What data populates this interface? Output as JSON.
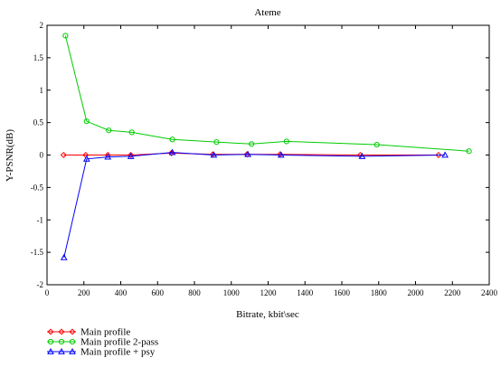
{
  "chart_data": {
    "type": "line",
    "title": "Ateme",
    "xlabel": "Bitrate, kbit\\sec",
    "ylabel": "Y-PSNR(dB)",
    "xlim": [
      0,
      2400
    ],
    "ylim": [
      -2,
      2
    ],
    "xticks": [
      0,
      200,
      400,
      600,
      800,
      1000,
      1200,
      1400,
      1600,
      1800,
      2000,
      2200,
      2400
    ],
    "yticks": [
      -2,
      -1.5,
      -1,
      -0.5,
      0,
      0.5,
      1,
      1.5,
      2
    ],
    "xtick_labels": [
      "0",
      "200",
      "400",
      "600",
      "800",
      "1000",
      "1200",
      "1400",
      "1600",
      "1800",
      "2000",
      "2200",
      "2400"
    ],
    "ytick_labels": [
      "-2",
      "-1.5",
      "-1",
      "-0.5",
      "0",
      "0.5",
      "1",
      "1.5",
      "2"
    ],
    "grid": false,
    "legend_position": "below-left",
    "series": [
      {
        "name": "Main profile",
        "color": "#ff0000",
        "marker": "diamond",
        "x": [
          90,
          210,
          330,
          455,
          675,
          900,
          1085,
          1265,
          1700,
          2125
        ],
        "y": [
          0,
          0,
          0,
          0,
          0.03,
          0.01,
          0.01,
          0.01,
          0,
          0
        ]
      },
      {
        "name": "Main profile 2-pass",
        "color": "#00cc00",
        "marker": "circle",
        "x": [
          100,
          215,
          335,
          460,
          680,
          920,
          1110,
          1300,
          1790,
          2290
        ],
        "y": [
          1.84,
          0.52,
          0.38,
          0.35,
          0.24,
          0.2,
          0.17,
          0.21,
          0.16,
          0.06
        ]
      },
      {
        "name": "Main profile + psy",
        "color": "#0000ff",
        "marker": "triangle",
        "x": [
          92,
          215,
          330,
          455,
          680,
          905,
          1090,
          1270,
          1710,
          2160
        ],
        "y": [
          -1.58,
          -0.06,
          -0.03,
          -0.02,
          0.04,
          0,
          0.01,
          0,
          -0.02,
          0
        ]
      }
    ]
  }
}
